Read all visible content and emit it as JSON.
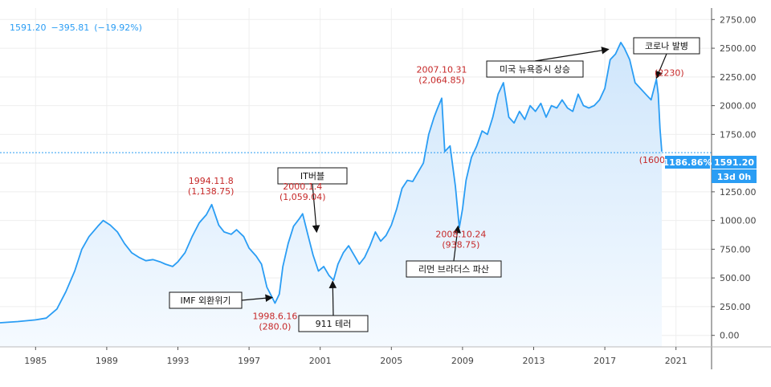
{
  "header": {
    "price": "1591.20",
    "change": "−395.81",
    "change_pct": "(−19.92%)"
  },
  "badges": {
    "pct": "1186.86%",
    "price": "1591.20",
    "timer": "13d 0h"
  },
  "chart_data": {
    "type": "area",
    "title": "",
    "xlabel": "",
    "ylabel": "",
    "xlim": [
      1983,
      2023
    ],
    "ylim": [
      -100,
      2850
    ],
    "x_ticks": [
      1985,
      1989,
      1993,
      1997,
      2001,
      2005,
      2009,
      2013,
      2017,
      2021
    ],
    "y_ticks": [
      0,
      250,
      500,
      750,
      1000,
      1250,
      1500,
      1750,
      2000,
      2250,
      2500,
      2750
    ],
    "y_tick_labels": [
      "0.00",
      "250.00",
      "500.00",
      "750.00",
      "1000.00",
      "1250.00",
      "1500.00",
      "1750.00",
      "2000.00",
      "2250.00",
      "2500.00",
      "2750.00"
    ],
    "price_line": 1591.2,
    "colors": {
      "line": "#2a9df4",
      "fill_top": "#cfe6fb",
      "fill_bottom": "#f3f9ff",
      "annotation": "#c62828"
    },
    "series": [
      {
        "x": [
          1983.0,
          1984.0,
          1985.0,
          1985.6,
          1986.2,
          1986.7,
          1987.2,
          1987.6,
          1988.0,
          1988.5,
          1988.8,
          1989.2,
          1989.6,
          1990.0,
          1990.4,
          1990.8,
          1991.2,
          1991.6,
          1992.0,
          1992.3,
          1992.7,
          1993.0,
          1993.4,
          1993.8,
          1994.2,
          1994.6,
          1994.9,
          1995.3,
          1995.6,
          1996.0,
          1996.3,
          1996.7,
          1997.0,
          1997.4,
          1997.7,
          1998.0,
          1998.3,
          1998.46,
          1998.7,
          1998.9,
          1999.2,
          1999.5,
          1999.8,
          2000.01,
          2000.3,
          2000.6,
          2000.9,
          2001.2,
          2001.5,
          2001.75,
          2002.0,
          2002.3,
          2002.6,
          2002.9,
          2003.2,
          2003.5,
          2003.8,
          2004.1,
          2004.4,
          2004.7,
          2005.0,
          2005.3,
          2005.6,
          2005.9,
          2006.2,
          2006.5,
          2006.8,
          2007.1,
          2007.4,
          2007.6,
          2007.83,
          2008.0,
          2008.3,
          2008.6,
          2008.82,
          2009.0,
          2009.2,
          2009.5,
          2009.8,
          2010.1,
          2010.4,
          2010.7,
          2011.0,
          2011.3,
          2011.6,
          2011.9,
          2012.2,
          2012.5,
          2012.8,
          2013.1,
          2013.4,
          2013.7,
          2014.0,
          2014.3,
          2014.6,
          2014.9,
          2015.2,
          2015.5,
          2015.8,
          2016.1,
          2016.4,
          2016.7,
          2017.0,
          2017.3,
          2017.6,
          2017.9,
          2018.1,
          2018.4,
          2018.7,
          2019.0,
          2019.3,
          2019.6,
          2019.9,
          2020.0,
          2020.1,
          2020.2
        ],
        "y": [
          110,
          120,
          135,
          150,
          230,
          380,
          560,
          750,
          860,
          950,
          1000,
          960,
          900,
          800,
          720,
          680,
          650,
          660,
          640,
          620,
          600,
          640,
          720,
          860,
          980,
          1050,
          1138.75,
          960,
          900,
          880,
          920,
          860,
          760,
          690,
          620,
          420,
          330,
          280,
          360,
          600,
          800,
          950,
          1010,
          1059.04,
          880,
          700,
          560,
          600,
          520,
          480,
          620,
          720,
          780,
          700,
          620,
          680,
          780,
          900,
          820,
          870,
          960,
          1100,
          1280,
          1350,
          1340,
          1420,
          1500,
          1750,
          1900,
          1980,
          2064.85,
          1600,
          1650,
          1300,
          938.75,
          1100,
          1350,
          1550,
          1650,
          1780,
          1750,
          1900,
          2100,
          2200,
          1900,
          1850,
          1950,
          1880,
          2000,
          1950,
          2020,
          1900,
          2000,
          1980,
          2050,
          1980,
          1950,
          2100,
          2000,
          1980,
          2000,
          2050,
          2150,
          2400,
          2450,
          2550,
          2500,
          2400,
          2200,
          2150,
          2100,
          2050,
          2230,
          2100,
          1800,
          1600
        ]
      }
    ],
    "annotations": [
      {
        "lines": [
          "1994.11.8",
          "(1,138.75)"
        ],
        "x": 1994.86,
        "y": 1138.75
      },
      {
        "lines": [
          "2000.1.4",
          "(1,059.04)"
        ],
        "x": 2000.01,
        "y": 1059.04
      },
      {
        "lines": [
          "1998.6.16",
          "(280.0)"
        ],
        "x": 1998.46,
        "y": 280
      },
      {
        "lines": [
          "2007.10.31",
          "(2,064.85)"
        ],
        "x": 2007.83,
        "y": 2064.85
      },
      {
        "lines": [
          "2008.10.24",
          "(938.75)"
        ],
        "x": 2008.82,
        "y": 938.75
      },
      {
        "lines": [
          "(2230)"
        ],
        "x": 2019.9,
        "y": 2230
      },
      {
        "lines": [
          "(1600)"
        ],
        "x": 2020.2,
        "y": 1600
      }
    ],
    "callouts": [
      {
        "text": "IMF 외환위기",
        "x": 1998.3,
        "y": 330
      },
      {
        "text": "IT버블",
        "x": 2000.8,
        "y": 900
      },
      {
        "text": "911 테러",
        "x": 2001.7,
        "y": 470
      },
      {
        "text": "리먼 브라더스 파산",
        "x": 2008.75,
        "y": 950
      },
      {
        "text": "미국 뉴욕증시 상승",
        "x": 2017.2,
        "y": 2490
      },
      {
        "text": "코로나 발병",
        "x": 2019.9,
        "y": 2240
      }
    ]
  }
}
